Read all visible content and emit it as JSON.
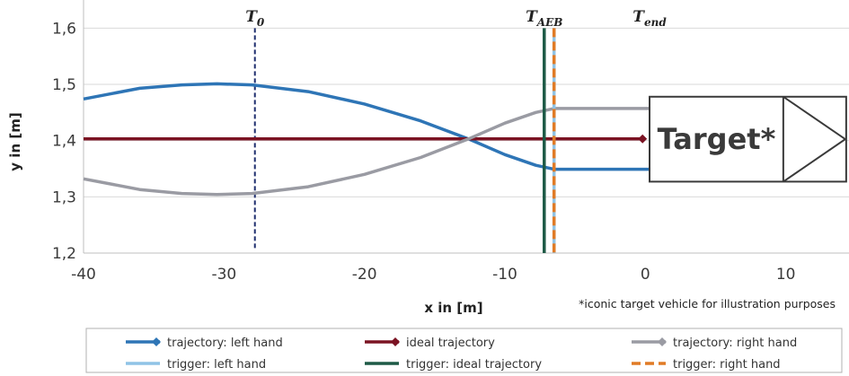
{
  "chart_data": {
    "type": "line",
    "xlabel": "x in [m]",
    "ylabel": "y in [m]",
    "xlim": [
      -40,
      14.5
    ],
    "ylim": [
      1.2,
      1.65
    ],
    "x_ticks": [
      -40,
      -30,
      -20,
      -10,
      0,
      10
    ],
    "x_tick_labels": [
      "-40",
      "-30",
      "-20",
      "-10",
      "0",
      "10"
    ],
    "y_ticks": [
      1.2,
      1.3,
      1.4,
      1.5,
      1.6
    ],
    "y_tick_labels": [
      "1,2",
      "1,3",
      "1,4",
      "1,5",
      "1,6"
    ],
    "grid": "horizontal",
    "legend_position": "bottom",
    "series": [
      {
        "name": "trajectory: left hand",
        "color": "#2e75b6",
        "style": "solid",
        "marker": "diamond",
        "x": [
          -40,
          -36,
          -33,
          -30.5,
          -28,
          -24,
          -20,
          -16,
          -12.5,
          -10,
          -7.8,
          -6.5,
          0.5
        ],
        "y": [
          1.474,
          1.493,
          1.499,
          1.501,
          1.499,
          1.487,
          1.465,
          1.435,
          1.402,
          1.375,
          1.356,
          1.349,
          1.349
        ]
      },
      {
        "name": "ideal trajectory",
        "color": "#7b1323",
        "style": "solid",
        "marker": "diamond",
        "x": [
          -40,
          -0.2
        ],
        "y": [
          1.403,
          1.403
        ]
      },
      {
        "name": "trajectory: right hand",
        "color": "#9a9ba3",
        "style": "solid",
        "marker": "diamond",
        "x": [
          -40,
          -36,
          -33,
          -30.5,
          -28,
          -24,
          -20,
          -16,
          -12.5,
          -10,
          -7.8,
          -6.5,
          0.5
        ],
        "y": [
          1.332,
          1.313,
          1.306,
          1.304,
          1.306,
          1.318,
          1.34,
          1.37,
          1.404,
          1.431,
          1.45,
          1.457,
          1.457
        ]
      }
    ],
    "triggers": [
      {
        "name": "trigger: left hand",
        "color": "#8fc3e6",
        "style": "solid",
        "x": -6.5
      },
      {
        "name": "trigger: ideal trajectory",
        "color": "#1e5a46",
        "style": "solid",
        "x": -7.2
      },
      {
        "name": "trigger:  right hand",
        "color": "#e07b26",
        "style": "dashed",
        "x": -6.5
      }
    ],
    "time_markers": [
      {
        "label": "T",
        "sub": "0",
        "x": -27.8,
        "line": "dashed",
        "color": "#1f2e6e"
      },
      {
        "label": "T",
        "sub": "AEB",
        "x": -7.2,
        "line": "none"
      },
      {
        "label": "T",
        "sub": "end",
        "x": 0.3,
        "line": "none"
      }
    ],
    "target": {
      "label": "Target*",
      "x_start": 0.3,
      "x_end": 14.3,
      "y_top": 1.478,
      "y_bottom": 1.327
    },
    "annotation": "*iconic target vehicle for illustration purposes"
  }
}
